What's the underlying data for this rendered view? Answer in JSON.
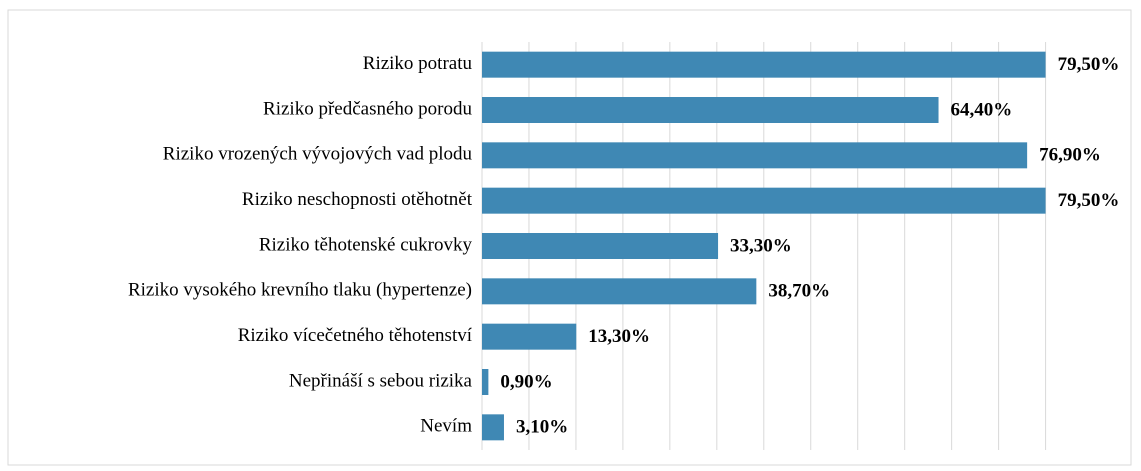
{
  "chart_data": {
    "type": "barh",
    "categories": [
      "Riziko potratu",
      "Riziko předčasného porodu",
      "Riziko vrozených vývojových vad plodu",
      "Riziko neschopnosti otěhotnět",
      "Riziko těhotenské cukrovky",
      "Riziko vysokého krevního tlaku (hypertenze)",
      "Riziko vícečetného těhotenství",
      "Nepřináší s sebou rizika",
      "Nevím"
    ],
    "values": [
      79.5,
      64.4,
      76.9,
      79.5,
      33.3,
      38.7,
      13.3,
      0.9,
      3.1
    ],
    "value_labels": [
      "79,50%",
      "64,40%",
      "76,90%",
      "79,50%",
      "33,30%",
      "38,70%",
      "13,30%",
      "0,90%",
      "3,10%"
    ],
    "color": "#3f88b4",
    "xlim": [
      0,
      90
    ],
    "xticks": [
      0,
      6.625,
      13.25,
      19.875,
      26.5,
      33.125,
      39.75,
      46.375,
      53,
      59.625,
      66.25,
      72.875,
      79.5
    ],
    "grid": true
  }
}
